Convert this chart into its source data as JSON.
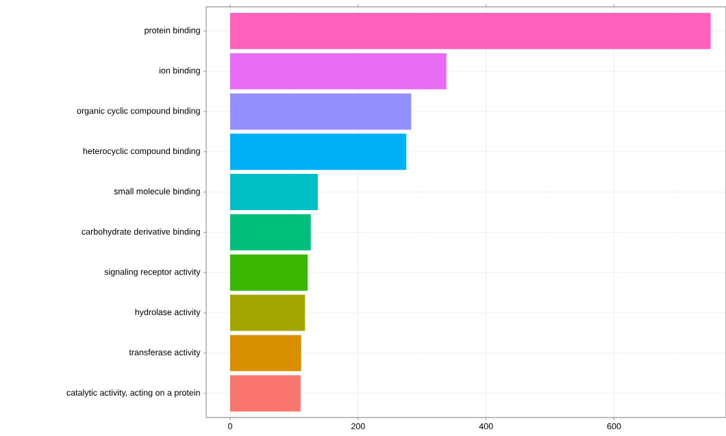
{
  "chart_data": {
    "type": "bar",
    "orientation": "horizontal",
    "categories": [
      "protein binding",
      "ion binding",
      "organic cyclic compound binding",
      "heterocyclic compound binding",
      "small molecule binding",
      "carbohydrate derivative binding",
      "signaling receptor activity",
      "hydrolase activity",
      "transferase activity",
      "catalytic activity, acting on a protein"
    ],
    "values": [
      751,
      338,
      283,
      275,
      137,
      126,
      121,
      117,
      111,
      110
    ],
    "colors": [
      "#FF62BC",
      "#E76BF3",
      "#9590FF",
      "#00B0F6",
      "#00BFC4",
      "#00BF7D",
      "#39B600",
      "#A3A500",
      "#D89000",
      "#F8766D"
    ],
    "xlim": [
      -37.5,
      775
    ],
    "xticks": [
      0,
      200,
      400,
      600
    ],
    "grid": true
  }
}
